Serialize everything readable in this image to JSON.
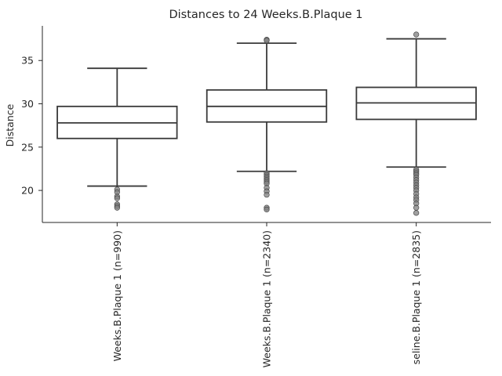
{
  "chart_data": {
    "type": "box",
    "title": "Distances to 24 Weeks.B.Plaque 1",
    "xlabel": "",
    "ylabel": "Distance",
    "ylim": [
      16.3,
      39.0
    ],
    "yticks": [
      20,
      25,
      30,
      35
    ],
    "grid": false,
    "categories": [
      "Weeks.B.Plaque 1 (n=990)",
      "Weeks.B.Plaque 1 (n=2340)",
      "seline.B.Plaque 1 (n=2835)"
    ],
    "boxes": [
      {
        "whisker_low": 20.5,
        "q1": 26.0,
        "median": 27.8,
        "q3": 29.7,
        "whisker_high": 34.1,
        "fliers": [
          20.1,
          19.8,
          19.3,
          19.1,
          18.4,
          18.2,
          18.0
        ]
      },
      {
        "whisker_low": 22.2,
        "q1": 27.9,
        "median": 29.7,
        "q3": 31.6,
        "whisker_high": 37.0,
        "fliers": [
          37.4,
          37.3,
          22.0,
          21.8,
          21.6,
          21.4,
          21.2,
          21.0,
          20.8,
          20.3,
          19.9,
          19.5,
          18.0,
          17.8
        ]
      },
      {
        "whisker_low": 22.7,
        "q1": 28.2,
        "median": 30.1,
        "q3": 31.9,
        "whisker_high": 37.5,
        "fliers": [
          38.0,
          22.4,
          22.2,
          22.0,
          21.8,
          21.5,
          21.2,
          20.9,
          20.6,
          20.3,
          20.0,
          19.6,
          19.2,
          18.9,
          18.5,
          18.0,
          17.4
        ]
      }
    ]
  }
}
